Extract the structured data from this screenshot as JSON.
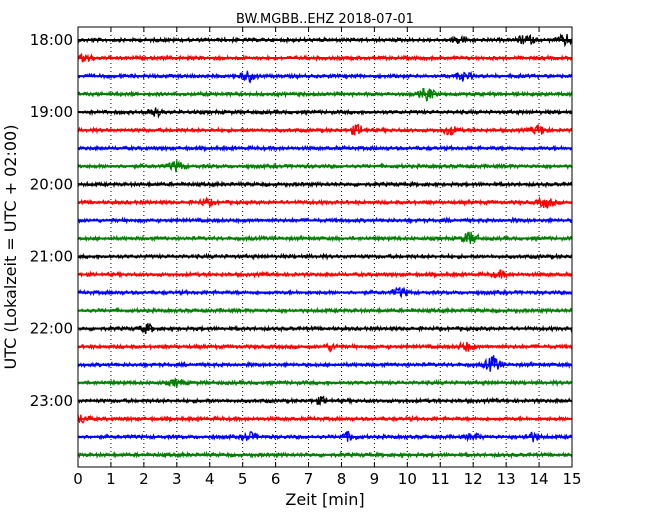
{
  "chart_data": {
    "type": "line",
    "title": "BW.MGBB..EHZ 2018-07-01",
    "xlabel": "Zeit  [min]",
    "ylabel": "UTC (Lokalzeit = UTC + 02:00)",
    "xlim": [
      0,
      15
    ],
    "x_ticks": [
      "0",
      "1",
      "2",
      "3",
      "4",
      "5",
      "6",
      "7",
      "8",
      "9",
      "10",
      "11",
      "12",
      "13",
      "14",
      "15"
    ],
    "y_ticks": [
      "18:00",
      "19:00",
      "20:00",
      "21:00",
      "22:00",
      "23:00"
    ],
    "trace_colors": [
      "#000000",
      "#ff0000",
      "#0000ff",
      "#008000"
    ],
    "grid": "vertical dotted at each minute",
    "traces": [
      {
        "start": "18:00",
        "color": "#000000"
      },
      {
        "start": "18:15",
        "color": "#ff0000"
      },
      {
        "start": "18:30",
        "color": "#0000ff"
      },
      {
        "start": "18:45",
        "color": "#008000"
      },
      {
        "start": "19:00",
        "color": "#000000"
      },
      {
        "start": "19:15",
        "color": "#ff0000"
      },
      {
        "start": "19:30",
        "color": "#0000ff"
      },
      {
        "start": "19:45",
        "color": "#008000"
      },
      {
        "start": "20:00",
        "color": "#000000"
      },
      {
        "start": "20:15",
        "color": "#ff0000"
      },
      {
        "start": "20:30",
        "color": "#0000ff"
      },
      {
        "start": "20:45",
        "color": "#008000"
      },
      {
        "start": "21:00",
        "color": "#000000"
      },
      {
        "start": "21:15",
        "color": "#ff0000"
      },
      {
        "start": "21:30",
        "color": "#0000ff"
      },
      {
        "start": "21:45",
        "color": "#008000"
      },
      {
        "start": "22:00",
        "color": "#000000"
      },
      {
        "start": "22:15",
        "color": "#ff0000"
      },
      {
        "start": "22:30",
        "color": "#0000ff"
      },
      {
        "start": "22:45",
        "color": "#008000"
      },
      {
        "start": "23:00",
        "color": "#000000"
      },
      {
        "start": "23:15",
        "color": "#ff0000"
      },
      {
        "start": "23:30",
        "color": "#0000ff"
      },
      {
        "start": "23:45",
        "color": "#008000"
      }
    ],
    "bursts": [
      {
        "trace": 0,
        "t": 13.6,
        "amp": 5
      },
      {
        "trace": 0,
        "t": 14.8,
        "amp": 5
      },
      {
        "trace": 0,
        "t": 11.6,
        "amp": 3
      },
      {
        "trace": 1,
        "t": 0.2,
        "amp": 4
      },
      {
        "trace": 2,
        "t": 5.2,
        "amp": 5
      },
      {
        "trace": 2,
        "t": 11.7,
        "amp": 4
      },
      {
        "trace": 3,
        "t": 10.6,
        "amp": 6
      },
      {
        "trace": 4,
        "t": 2.3,
        "amp": 4
      },
      {
        "trace": 5,
        "t": 8.5,
        "amp": 5
      },
      {
        "trace": 5,
        "t": 11.3,
        "amp": 4
      },
      {
        "trace": 5,
        "t": 14.0,
        "amp": 5
      },
      {
        "trace": 7,
        "t": 3.0,
        "amp": 5
      },
      {
        "trace": 9,
        "t": 14.2,
        "amp": 5
      },
      {
        "trace": 9,
        "t": 3.9,
        "amp": 3
      },
      {
        "trace": 11,
        "t": 11.9,
        "amp": 6
      },
      {
        "trace": 13,
        "t": 12.8,
        "amp": 3
      },
      {
        "trace": 14,
        "t": 9.8,
        "amp": 4
      },
      {
        "trace": 16,
        "t": 2.1,
        "amp": 4
      },
      {
        "trace": 17,
        "t": 7.7,
        "amp": 3
      },
      {
        "trace": 17,
        "t": 11.8,
        "amp": 4
      },
      {
        "trace": 18,
        "t": 12.6,
        "amp": 8
      },
      {
        "trace": 19,
        "t": 3.0,
        "amp": 3
      },
      {
        "trace": 20,
        "t": 7.4,
        "amp": 3
      },
      {
        "trace": 21,
        "t": 0.1,
        "amp": 4
      },
      {
        "trace": 22,
        "t": 5.2,
        "amp": 4
      },
      {
        "trace": 22,
        "t": 8.2,
        "amp": 4
      },
      {
        "trace": 22,
        "t": 13.8,
        "amp": 4
      },
      {
        "trace": 22,
        "t": 12.0,
        "amp": 3
      }
    ]
  }
}
